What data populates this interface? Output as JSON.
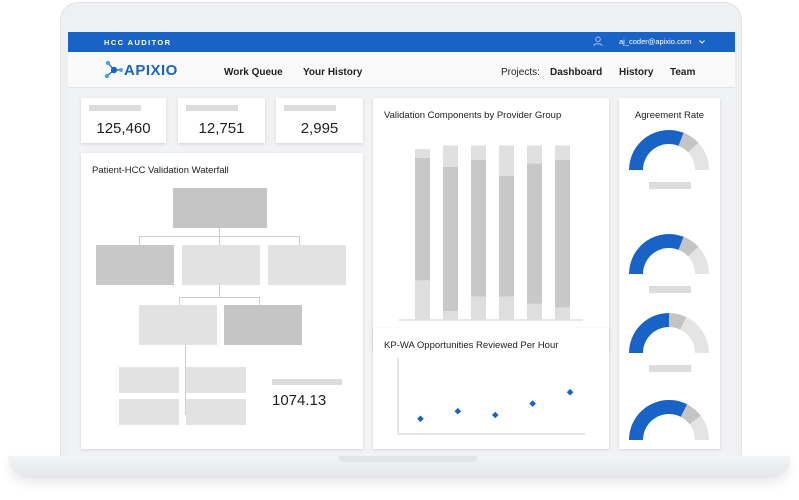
{
  "app": {
    "name": "HCC AUDITOR",
    "user_email": "aj_coder@apixio.com",
    "user_icon": "user-icon",
    "dropdown_icon": "chevron-down-icon"
  },
  "brand": {
    "logo_text": "APIXIO",
    "accent": "#1a63c6"
  },
  "nav": {
    "work_queue": "Work Queue",
    "your_history": "Your History",
    "projects_label": "Projects:",
    "dashboard": "Dashboard",
    "history": "History",
    "team": "Team"
  },
  "stats": [
    {
      "value": "125,460"
    },
    {
      "value": "12,751"
    },
    {
      "value": "2,995"
    }
  ],
  "waterfall": {
    "title": "Patient-HCC Validation Waterfall",
    "value": "1074.13"
  },
  "components": {
    "title": "Validation Components by Provider Group",
    "chart_data": {
      "type": "bar",
      "stacked": true,
      "series": [
        {
          "name": "",
          "values": [
            0.22,
            0.05,
            0.13,
            0.13,
            0.09,
            0.07
          ],
          "color": "#dedede"
        },
        {
          "name": "",
          "values": [
            0.68,
            0.8,
            0.76,
            0.67,
            0.78,
            0.82
          ],
          "color": "#c8c8c8"
        },
        {
          "name": "",
          "values": [
            0.05,
            0.12,
            0.08,
            0.17,
            0.1,
            0.08
          ],
          "color": "#e0e0e0"
        }
      ],
      "grid": false
    }
  },
  "kpwa": {
    "title": "KP-WA Opportunities Reviewed Per Hour",
    "chart_data": {
      "type": "scatter",
      "x": [
        1,
        2,
        3,
        4,
        5
      ],
      "y": [
        0.2,
        0.3,
        0.25,
        0.4,
        0.55
      ],
      "color": "#1a63c6",
      "grid": false
    }
  },
  "agreement": {
    "title": "Agreement Rate",
    "chart_data": {
      "type": "gauge",
      "gauges": [
        {
          "value": 0.62
        },
        {
          "value": 0.62
        },
        {
          "value": 0.5
        },
        {
          "value": 0.65
        }
      ]
    }
  }
}
